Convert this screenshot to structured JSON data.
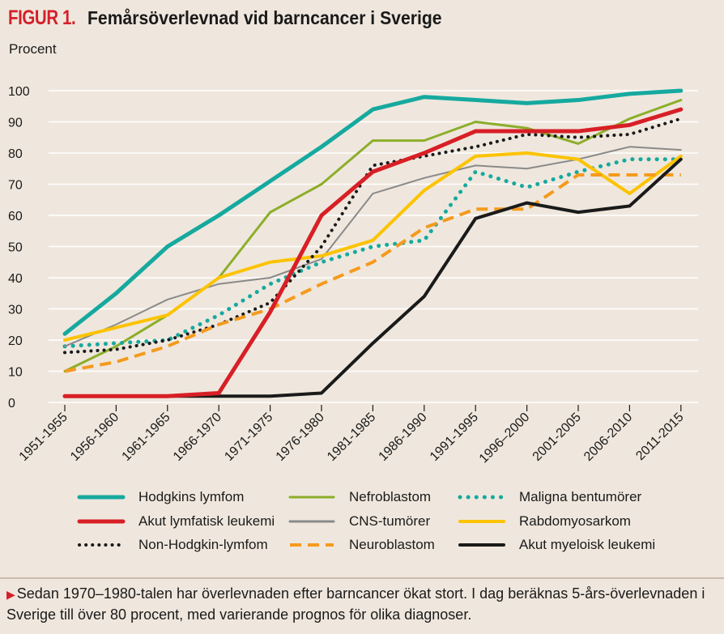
{
  "figure": {
    "label": "FIGUR 1.",
    "title": "Femårsöverlevnad vid barncancer i Sverige",
    "ylabel": "Procent",
    "caption": "Sedan 1970–1980-talen har överlevnaden efter barncancer ökat stort. I dag beräknas 5-års-överlevnaden i Sverige till över 80 procent, med varierande prognos för olika diagnoser.",
    "caption_marker": "▶"
  },
  "chart_data": {
    "type": "line",
    "title": "Femårsöverlevnad vid barncancer i Sverige",
    "xlabel": "",
    "ylabel": "Procent",
    "ylim": [
      0,
      100
    ],
    "yticks": [
      0,
      10,
      20,
      30,
      40,
      50,
      60,
      70,
      80,
      90,
      100
    ],
    "grid": "horizontal",
    "legend_position": "bottom",
    "categories": [
      "1951-1955",
      "1956-1960",
      "1961-1965",
      "1966-1970",
      "1971-1975",
      "1976-1980",
      "1981-1985",
      "1986-1990",
      "1991-1995",
      "1996–2000",
      "2001-2005",
      "2006-2010",
      "2011-2015"
    ],
    "series": [
      {
        "name": "Hodgkins lymfom",
        "color": "#16a99f",
        "style": "solid",
        "width": 5,
        "values": [
          22,
          35,
          50,
          60,
          71,
          82,
          94,
          98,
          97,
          96,
          97,
          99,
          100
        ]
      },
      {
        "name": "Nefroblastom",
        "color": "#8cae2a",
        "style": "solid",
        "width": 3,
        "values": [
          10,
          18,
          28,
          40,
          61,
          70,
          84,
          84,
          90,
          88,
          83,
          91,
          97
        ]
      },
      {
        "name": "Maligna bentumörer",
        "color": "#16a99f",
        "style": "dotted",
        "width": 5,
        "values": [
          18,
          19,
          20,
          28,
          38,
          45,
          50,
          52,
          74,
          69,
          74,
          78,
          78
        ]
      },
      {
        "name": "CNS-tumörer",
        "color": "#8a8a8a",
        "style": "solid",
        "width": 2,
        "values": [
          18,
          25,
          33,
          38,
          40,
          46,
          67,
          72,
          76,
          75,
          78,
          82,
          81
        ]
      },
      {
        "name": "Rabdomyosarkom",
        "color": "#fcc300",
        "style": "solid",
        "width": 4,
        "values": [
          20,
          24,
          28,
          40,
          45,
          47,
          52,
          68,
          79,
          80,
          78,
          67,
          79
        ]
      },
      {
        "name": "Non-Hodgkin-lymfom",
        "color": "#1a1a1a",
        "style": "dotted",
        "width": 4,
        "values": [
          16,
          17,
          20,
          25,
          32,
          50,
          76,
          79,
          82,
          86,
          85,
          86,
          91
        ]
      },
      {
        "name": "Neuroblastom",
        "color": "#f59a1e",
        "style": "dashed",
        "width": 4,
        "values": [
          10,
          13,
          18,
          25,
          30,
          38,
          45,
          56,
          62,
          62,
          73,
          73,
          73
        ]
      },
      {
        "name": "Akut myeloisk leukemi",
        "color": "#1a1a1a",
        "style": "solid",
        "width": 4,
        "values": [
          2,
          2,
          2,
          2,
          2,
          3,
          19,
          34,
          59,
          64,
          61,
          63,
          78
        ]
      },
      {
        "name": "Akut lymfatisk leukemi",
        "color": "#d81f26",
        "style": "solid",
        "width": 5,
        "values": [
          2,
          2,
          2,
          3,
          29,
          60,
          74,
          80,
          87,
          87,
          87,
          89,
          94
        ]
      }
    ],
    "legend": [
      [
        "Hodgkins lymfom",
        "Nefroblastom",
        "Maligna bentumörer"
      ],
      [
        "Akut lymfatisk leukemi",
        "CNS-tumörer",
        "Rabdomyosarkom"
      ],
      [
        "Non-Hodgkin-lymfom",
        "Neuroblastom",
        "Akut myeloisk leukemi"
      ]
    ]
  }
}
